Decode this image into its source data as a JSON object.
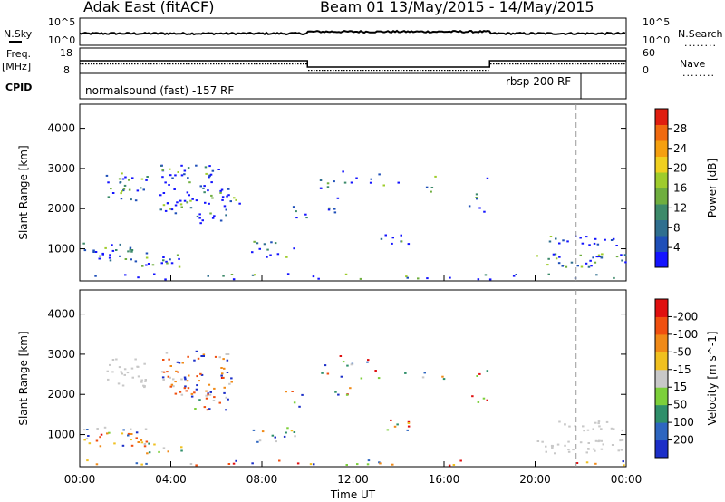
{
  "header": {
    "radar": "Adak East (fitACF)",
    "beam_range": "Beam 01  13/May/2015 - 14/May/2015"
  },
  "left_labels": {
    "nsky": "N.Sky",
    "freq": "Freq.",
    "freq_unit": "[MHz]",
    "cpid": "CPID"
  },
  "right_labels": {
    "nsearch": "N.Search",
    "nave": "Nave",
    "dots": "........"
  },
  "noise_axis": {
    "top": "10^5",
    "bottom": "10^0"
  },
  "freq_axis": {
    "top": "18",
    "bottom": "8"
  },
  "nave_axis": {
    "top": "60",
    "bottom": "0"
  },
  "cpid": {
    "mode_a": "normalsound (fast) -157 RF",
    "mode_b": "rbsp 200 RF"
  },
  "chart_data": [
    {
      "type": "heatmap",
      "name": "power",
      "ylabel": "Slant Range [km]",
      "y_ticks": [
        "1000",
        "2000",
        "3000",
        "4000"
      ],
      "ylim": [
        200,
        4600
      ],
      "xlim_hours": [
        0,
        24
      ],
      "colorbar": {
        "label": "Power [dB]",
        "ticks": [
          "4",
          "8",
          "12",
          "16",
          "20",
          "24",
          "28"
        ],
        "colors": [
          "#1414ff",
          "#1f4fb8",
          "#2f6f8f",
          "#3d8a6a",
          "#6fae3f",
          "#9fcc2c",
          "#f0d020",
          "#f5a010",
          "#f06a10",
          "#e01e10"
        ]
      }
    },
    {
      "type": "heatmap",
      "name": "velocity",
      "ylabel": "Slant Range [km]",
      "y_ticks": [
        "1000",
        "2000",
        "3000",
        "4000"
      ],
      "ylim": [
        200,
        4600
      ],
      "xlim_hours": [
        0,
        24
      ],
      "colorbar": {
        "label": "Velocity [m s^-1]",
        "ticks": [
          "200",
          "100",
          "50",
          "15",
          "-15",
          "-50",
          "-100",
          "-200"
        ],
        "colors": [
          "#1c2fc8",
          "#2e66c0",
          "#2f8f6a",
          "#7ccf3a",
          "#c8c8c8",
          "#f0c020",
          "#f08a18",
          "#f05010",
          "#e01010"
        ]
      }
    }
  ],
  "x_axis": {
    "ticks": [
      "00:00",
      "04:00",
      "08:00",
      "12:00",
      "16:00",
      "20:00",
      "00:00"
    ],
    "label": "Time UT"
  }
}
